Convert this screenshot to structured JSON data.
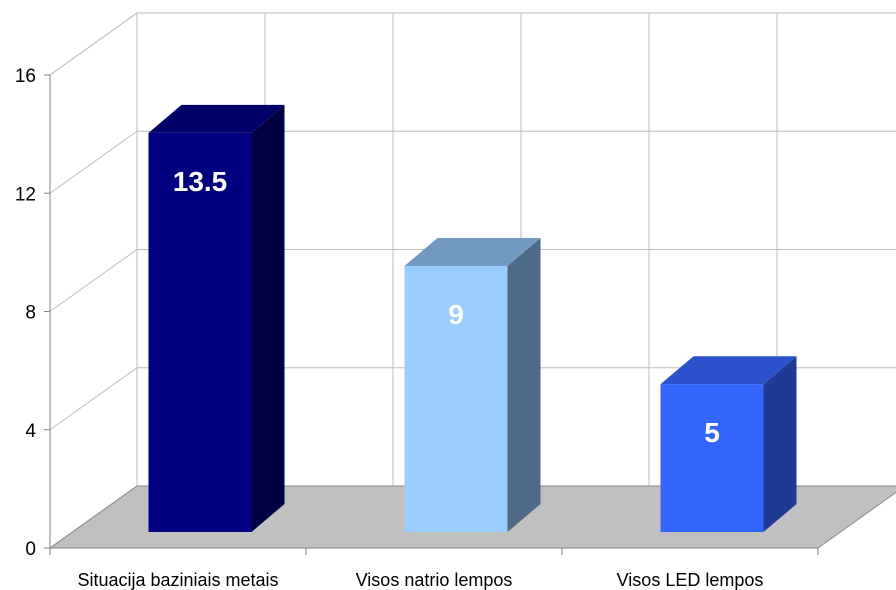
{
  "chart_data": {
    "type": "bar",
    "categories": [
      "Situacija baziniais metais",
      "Visos natrio lempos",
      "Visos LED lempos"
    ],
    "values": [
      13.5,
      9,
      5
    ],
    "data_labels": [
      "13.5",
      "9",
      "5"
    ],
    "ylim": [
      0,
      16
    ],
    "yticks": [
      0,
      4,
      8,
      12,
      16
    ],
    "ytick_labels": [
      "0",
      "4",
      "8",
      "12",
      "16"
    ],
    "grid": true,
    "three_d": true,
    "colors": {
      "bars": [
        {
          "front": "#000080",
          "top": "#00006b",
          "side": "#000042"
        },
        {
          "front": "#99ccff",
          "top": "#7299c2",
          "side": "#4f6a86"
        },
        {
          "front": "#3366ff",
          "top": "#2a52cc",
          "side": "#1f3a94"
        }
      ],
      "floor": "#c0c0c0",
      "grid": "#bdbdbd",
      "axis": "#808080"
    }
  }
}
